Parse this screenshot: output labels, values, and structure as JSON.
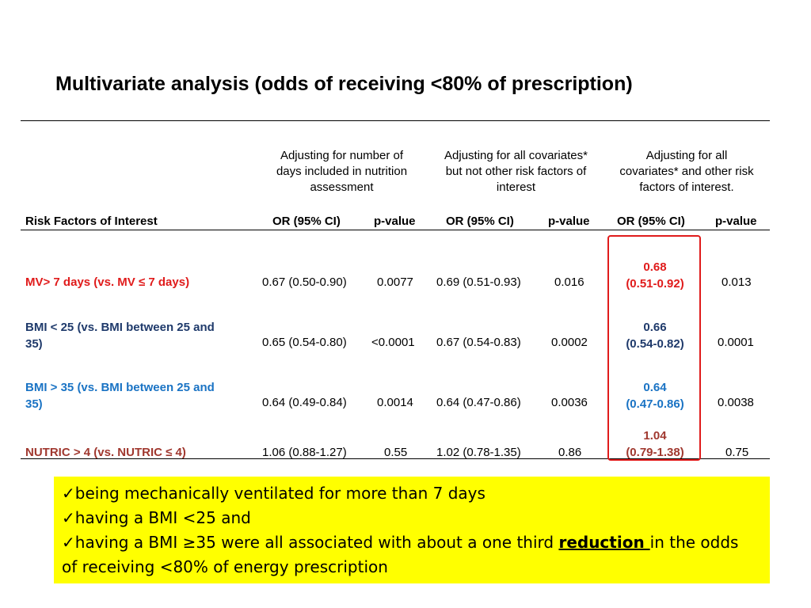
{
  "title": "Multivariate analysis (odds of receiving <80% of prescription)",
  "group_headers": [
    {
      "line1": "Adjusting for number of",
      "line2": "days included in nutrition",
      "line3": "assessment"
    },
    {
      "line1": "Adjusting for all covariates*",
      "line2": "but not other risk factors of",
      "line3": "interest"
    },
    {
      "line1": "Adjusting for all",
      "line2": "covariates* and other risk",
      "line3": "factors of interest."
    }
  ],
  "column_headers": {
    "risk_factor": "Risk Factors of Interest",
    "or1": "OR (95% CI)",
    "p1": "p-value",
    "or2": "OR (95% CI)",
    "p2": "p-value",
    "or3": "OR (95% CI)",
    "p3": "p-value"
  },
  "rows": [
    {
      "label_line1": "MV> 7 days (vs. MV ≤ 7 days)",
      "label_line2": "",
      "label_color": "#e01b1b",
      "or1": "0.67 (0.50-0.90)",
      "p1": "0.0077",
      "or2": "0.69 (0.51-0.93)",
      "p2": "0.016",
      "or3_line1": "0.68",
      "or3_line2": "(0.51-0.92)",
      "p3": "0.013"
    },
    {
      "label_line1": "BMI < 25 (vs. BMI between 25 and",
      "label_line2": "35)",
      "label_color": "#1f3a6b",
      "or1": "0.65 (0.54-0.80)",
      "p1": "<0.0001",
      "or2": "0.67 (0.54-0.83)",
      "p2": "0.0002",
      "or3_line1": "0.66",
      "or3_line2": "(0.54-0.82)",
      "p3": "0.0001"
    },
    {
      "label_line1": "BMI > 35 (vs. BMI between 25 and",
      "label_line2": "35)",
      "label_color": "#1a73c4",
      "or1": "0.64 (0.49-0.84)",
      "p1": "0.0014",
      "or2": "0.64 (0.47-0.86)",
      "p2": "0.0036",
      "or3_line1": "0.64",
      "or3_line2": "(0.47-0.86)",
      "p3": "0.0038"
    },
    {
      "label_line1": "NUTRIC > 4 (vs. NUTRIC ≤ 4)",
      "label_line2": "",
      "label_color": "#a0382f",
      "or1": "1.06 (0.88-1.27)",
      "p1": "0.55",
      "or2": "1.02 (0.78-1.35)",
      "p2": "0.86",
      "or3_line1": "1.04",
      "or3_line2": "(0.79-1.38)",
      "p3": "0.75"
    }
  ],
  "callout": {
    "check": "✓",
    "line1": "being mechanically ventilated for more than 7 days",
    "line2": "having a BMI <25 and",
    "line3_pre": "having a BMI ≥35 were all associated with about a one third ",
    "line3_emph": "reduction ",
    "line3_post": "in the odds",
    "line4": "of receiving <80% of energy prescription"
  },
  "colors": {
    "highlight_box": "#e01b1b",
    "callout_bg": "#ffff00"
  }
}
